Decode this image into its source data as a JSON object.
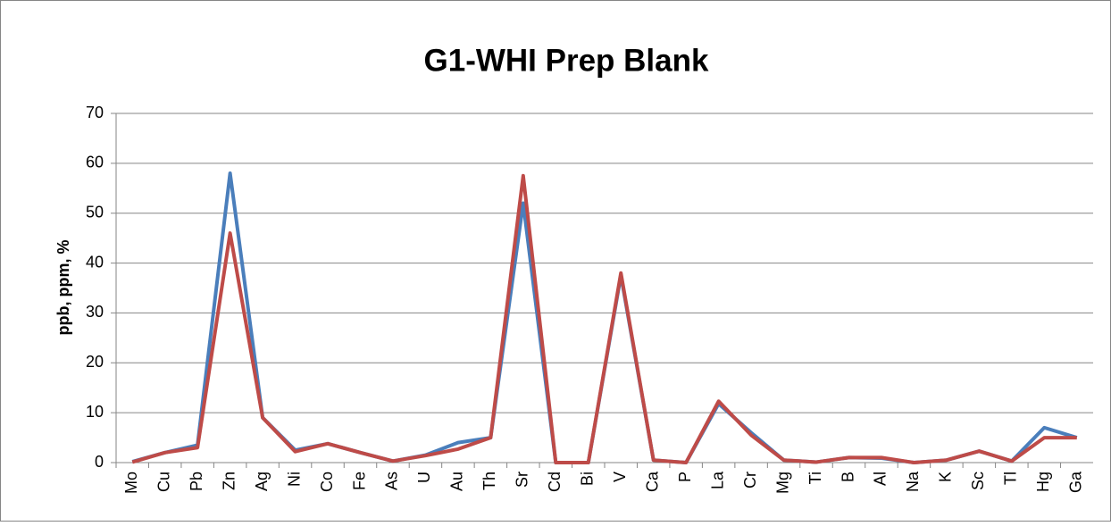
{
  "chart_data": {
    "type": "line",
    "title": "G1-WHI Prep Blank",
    "y_label": "ppb, ppm, %",
    "categories": [
      "Mo",
      "Cu",
      "Pb",
      "Zn",
      "Ag",
      "Ni",
      "Co",
      "Fe",
      "As",
      "U",
      "Au",
      "Th",
      "Sr",
      "Cd",
      "Bi",
      "V",
      "Ca",
      "P",
      "La",
      "Cr",
      "Mg",
      "Ti",
      "B",
      "Al",
      "Na",
      "K",
      "Sc",
      "Tl",
      "Hg",
      "Ga"
    ],
    "series": [
      {
        "color": "#4a7ebb",
        "values": [
          0.2,
          2,
          3.5,
          58,
          9,
          2.5,
          3.8,
          2,
          0.3,
          1.5,
          4,
          5,
          52,
          0,
          0,
          37.5,
          0.5,
          0,
          11.8,
          6,
          0.5,
          0.1,
          1,
          0.9,
          0,
          0.5,
          2.3,
          0.3,
          7,
          5
        ]
      },
      {
        "color": "#be4b48",
        "values": [
          0.1,
          2,
          3,
          46,
          9,
          2.2,
          3.8,
          2,
          0.3,
          1.4,
          2.7,
          5,
          57.5,
          0,
          0,
          38,
          0.5,
          0,
          12.3,
          5.5,
          0.5,
          0.1,
          1,
          1,
          0,
          0.5,
          2.3,
          0.3,
          5,
          5
        ]
      }
    ],
    "ylim": [
      0,
      70
    ],
    "yticks": [
      0,
      10,
      20,
      30,
      40,
      50,
      60,
      70
    ],
    "grid": true
  }
}
